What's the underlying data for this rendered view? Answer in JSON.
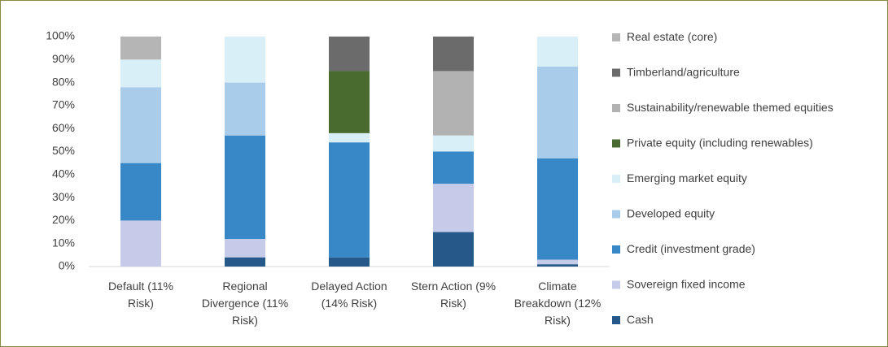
{
  "chart_data": {
    "type": "stacked_bar",
    "categories": [
      "Default (11% Risk)",
      "Regional Divergence (11% Risk)",
      "Delayed Action (14% Risk)",
      "Stern Action (9% Risk)",
      "Climate Breakdown (12% Risk)"
    ],
    "series": [
      {
        "name": "Cash",
        "color": "#26588a",
        "values": [
          0,
          4,
          4,
          15,
          1
        ]
      },
      {
        "name": "Sovereign fixed income",
        "color": "#c5cbe9",
        "values": [
          20,
          8,
          0,
          21,
          2
        ]
      },
      {
        "name": "Credit (investment grade)",
        "color": "#3888c7",
        "values": [
          25,
          45,
          50,
          14,
          44
        ]
      },
      {
        "name": "Developed equity",
        "color": "#a9cceb",
        "values": [
          33,
          23,
          0,
          0,
          40
        ]
      },
      {
        "name": "Emerging market equity",
        "color": "#d9eff8",
        "values": [
          12,
          20,
          4,
          7,
          13
        ]
      },
      {
        "name": "Private equity (including renewables)",
        "color": "#4a6b2f",
        "values": [
          0,
          0,
          27,
          0,
          0
        ]
      },
      {
        "name": "Sustainability/renewable themed equities",
        "color": "#b2b2b2",
        "values": [
          0,
          0,
          0,
          28,
          0
        ]
      },
      {
        "name": "Timberland/agriculture",
        "color": "#6b6b6b",
        "values": [
          0,
          0,
          15,
          15,
          0
        ]
      },
      {
        "name": "Real estate (core)",
        "color": "#b5b5b5",
        "values": [
          10,
          0,
          0,
          0,
          0
        ]
      }
    ],
    "ylim": [
      0,
      100
    ],
    "yticks": [
      {
        "value": 0,
        "label": "0%"
      },
      {
        "value": 10,
        "label": "10%"
      },
      {
        "value": 20,
        "label": "20%"
      },
      {
        "value": 30,
        "label": "30%"
      },
      {
        "value": 40,
        "label": "40%"
      },
      {
        "value": 50,
        "label": "50%"
      },
      {
        "value": 60,
        "label": "60%"
      },
      {
        "value": 70,
        "label": "70%"
      },
      {
        "value": 80,
        "label": "80%"
      },
      {
        "value": 90,
        "label": "90%"
      },
      {
        "value": 100,
        "label": "100%"
      }
    ],
    "grid": false,
    "legend": "right"
  }
}
